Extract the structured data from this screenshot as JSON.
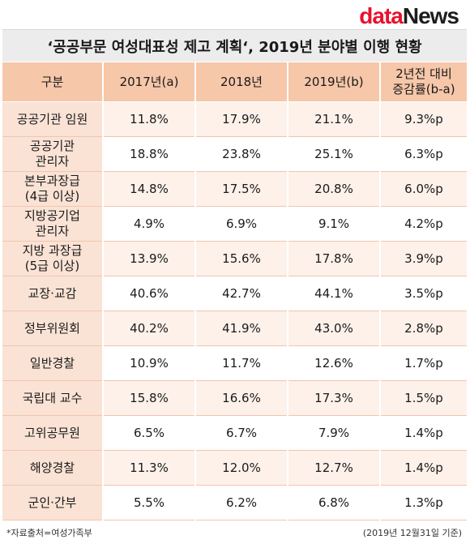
{
  "logo": {
    "part1": "data",
    "part2": "News"
  },
  "title": "‘공공부문 여성대표성 제고 계획‘, 2019년 분야별 이행 현황",
  "table": {
    "headers": [
      "구분",
      "2017년(a)",
      "2018년",
      "2019년(b)",
      "2년전 대비\n증감률(b-a)"
    ],
    "rows": [
      {
        "label": "공공기관 임원",
        "v2017": "11.8%",
        "v2018": "17.9%",
        "v2019": "21.1%",
        "change": "9.3%p"
      },
      {
        "label": "공공기관\n관리자",
        "v2017": "18.8%",
        "v2018": "23.8%",
        "v2019": "25.1%",
        "change": "6.3%p"
      },
      {
        "label": "본부과장급\n(4급 이상)",
        "v2017": "14.8%",
        "v2018": "17.5%",
        "v2019": "20.8%",
        "change": "6.0%p"
      },
      {
        "label": "지방공기업\n관리자",
        "v2017": "4.9%",
        "v2018": "6.9%",
        "v2019": "9.1%",
        "change": "4.2%p"
      },
      {
        "label": "지방 과장급\n(5급 이상)",
        "v2017": "13.9%",
        "v2018": "15.6%",
        "v2019": "17.8%",
        "change": "3.9%p"
      },
      {
        "label": "교장·교감",
        "v2017": "40.6%",
        "v2018": "42.7%",
        "v2019": "44.1%",
        "change": "3.5%p"
      },
      {
        "label": "정부위원회",
        "v2017": "40.2%",
        "v2018": "41.9%",
        "v2019": "43.0%",
        "change": "2.8%p"
      },
      {
        "label": "일반경찰",
        "v2017": "10.9%",
        "v2018": "11.7%",
        "v2019": "12.6%",
        "change": "1.7%p"
      },
      {
        "label": "국립대 교수",
        "v2017": "15.8%",
        "v2018": "16.6%",
        "v2019": "17.3%",
        "change": "1.5%p"
      },
      {
        "label": "고위공무원",
        "v2017": "6.5%",
        "v2018": "6.7%",
        "v2019": "7.9%",
        "change": "1.4%p"
      },
      {
        "label": "해양경찰",
        "v2017": "11.3%",
        "v2018": "12.0%",
        "v2019": "12.7%",
        "change": "1.4%p"
      },
      {
        "label": "군인·간부",
        "v2017": "5.5%",
        "v2018": "6.2%",
        "v2019": "6.8%",
        "change": "1.3%p"
      }
    ]
  },
  "footer": {
    "source": "*자료출처=여성가족부",
    "date": "(2019년  12월31일  기준)"
  },
  "colors": {
    "header_bg": "#f6c7a9",
    "label_bg": "#fae3d5",
    "row_alt_bg": "#fdf1ea",
    "title_bg": "#ececec",
    "logo_red": "#e8112d"
  }
}
